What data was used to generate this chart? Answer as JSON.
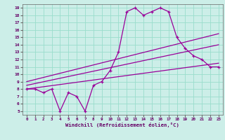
{
  "xlabel": "Windchill (Refroidissement éolien,°C)",
  "bg_color": "#cceee8",
  "grid_color": "#99ddcc",
  "line_color": "#990099",
  "xlim": [
    -0.5,
    23.5
  ],
  "ylim": [
    4.5,
    19.5
  ],
  "xticks": [
    0,
    1,
    2,
    3,
    4,
    5,
    6,
    7,
    8,
    9,
    10,
    11,
    12,
    13,
    14,
    15,
    16,
    17,
    18,
    19,
    20,
    21,
    22,
    23
  ],
  "yticks": [
    5,
    6,
    7,
    8,
    9,
    10,
    11,
    12,
    13,
    14,
    15,
    16,
    17,
    18,
    19
  ],
  "line1_x": [
    0,
    1,
    2,
    3,
    4,
    5,
    6,
    7,
    8,
    9,
    10,
    11,
    12,
    13,
    14,
    15,
    16,
    17,
    18,
    19,
    20,
    21,
    22,
    23
  ],
  "line1_y": [
    8,
    8,
    7.5,
    8,
    5,
    7.5,
    7,
    5,
    8.5,
    9,
    10.5,
    13,
    18.5,
    19,
    18,
    18.5,
    19,
    18.5,
    15,
    13.5,
    12.5,
    12,
    11,
    11
  ],
  "line2_x": [
    0,
    23
  ],
  "line2_y": [
    8,
    11.5
  ],
  "line3_x": [
    0,
    23
  ],
  "line3_y": [
    8.5,
    14
  ],
  "line4_x": [
    0,
    23
  ],
  "line4_y": [
    9,
    15.5
  ]
}
